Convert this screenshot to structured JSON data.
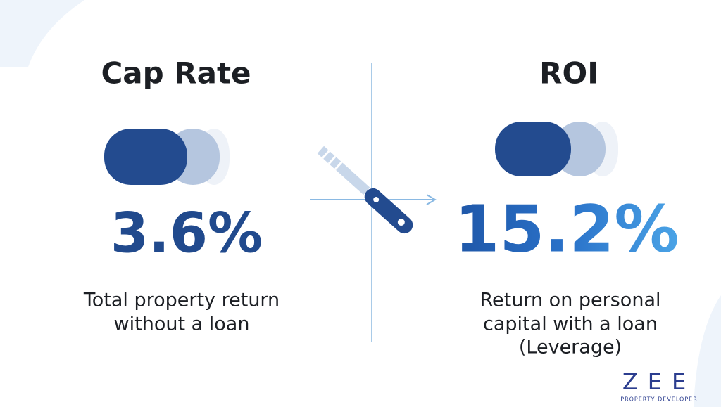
{
  "left": {
    "title": "Cap Rate",
    "value": "3.6%",
    "description": [
      "Total property return",
      "without a loan"
    ]
  },
  "right": {
    "title": "ROI",
    "value": "15.2%",
    "description": [
      "Return on personal",
      "capital with a loan",
      "(Leverage)"
    ]
  },
  "logo": {
    "name": "ZEE",
    "tagline": "PROPERTY DEVELOPER"
  }
}
